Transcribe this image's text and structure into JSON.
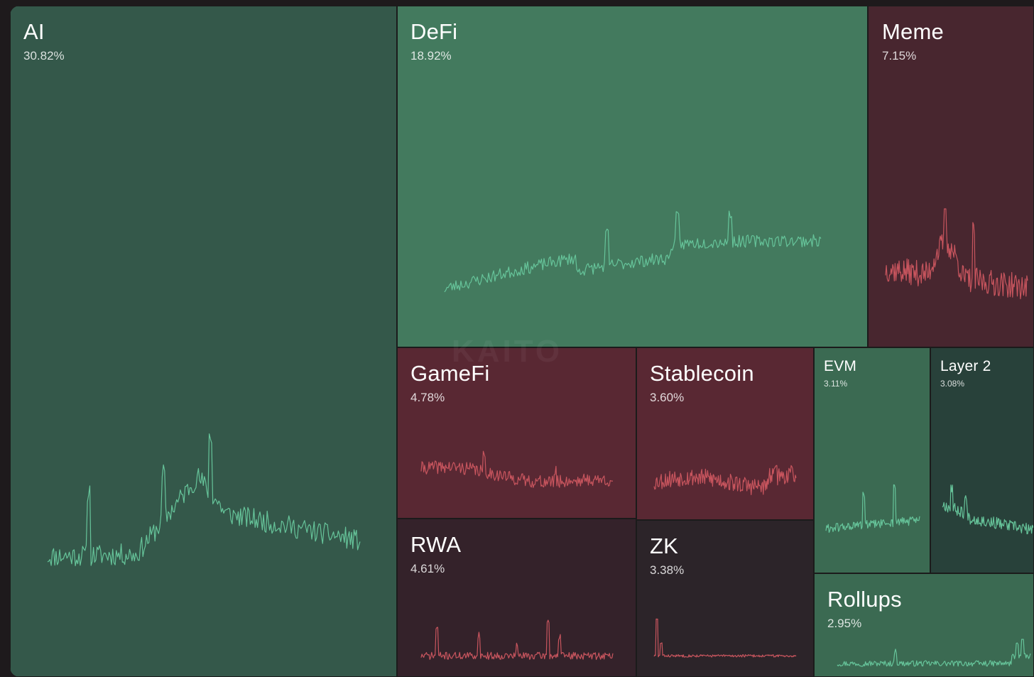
{
  "colors": {
    "green_tile": "#34584a",
    "green_bright": "#437a5e",
    "green_mid": "#3b6a52",
    "green_dark": "#28413a",
    "red_tile": "#592833",
    "red_mid": "#48262f",
    "red_dark": "#34222a",
    "dark_tile": "#2c2429",
    "line_green": "#66c49a",
    "line_red": "#c8555e"
  },
  "watermark": "KAITO",
  "chart_data": {
    "type": "treemap",
    "title": "",
    "tiles": [
      {
        "name": "AI",
        "value": 30.82,
        "label": "30.82%",
        "trend": "up"
      },
      {
        "name": "DeFi",
        "value": 18.92,
        "label": "18.92%",
        "trend": "up"
      },
      {
        "name": "Meme",
        "value": 7.15,
        "label": "7.15%",
        "trend": "down"
      },
      {
        "name": "GameFi",
        "value": 4.78,
        "label": "4.78%",
        "trend": "down"
      },
      {
        "name": "Stablecoin",
        "value": 3.6,
        "label": "3.60%",
        "trend": "down"
      },
      {
        "name": "EVM",
        "value": 3.11,
        "label": "3.11%",
        "trend": "up"
      },
      {
        "name": "Layer 2",
        "value": 3.08,
        "label": "3.08%",
        "trend": "up"
      },
      {
        "name": "RWA",
        "value": 4.61,
        "label": "4.61%",
        "trend": "down"
      },
      {
        "name": "ZK",
        "value": 3.38,
        "label": "3.38%",
        "trend": "down"
      },
      {
        "name": "Rollups",
        "value": 2.95,
        "label": "2.95%",
        "trend": "up"
      }
    ]
  }
}
